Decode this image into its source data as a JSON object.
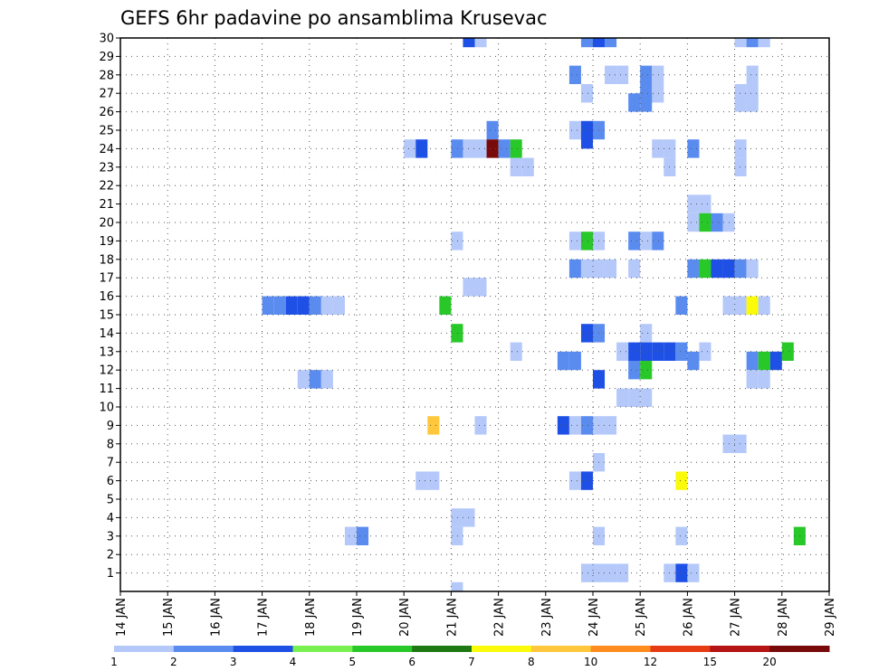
{
  "chart_data": {
    "type": "heatmap",
    "title": "GEFS 6hr padavine po ansamblima Krusevac",
    "xlabel": "",
    "ylabel": "",
    "x_ticks": [
      "14 JAN",
      "15 JAN",
      "16 JAN",
      "17 JAN",
      "18 JAN",
      "19 JAN",
      "20 JAN",
      "21 JAN",
      "22 JAN",
      "23 JAN",
      "24 JAN",
      "25 JAN",
      "26 JAN",
      "27 JAN",
      "28 JAN",
      "29 JAN"
    ],
    "y_ticks": [
      "1",
      "2",
      "3",
      "4",
      "5",
      "6",
      "7",
      "8",
      "9",
      "10",
      "11",
      "12",
      "13",
      "14",
      "15",
      "16",
      "17",
      "18",
      "19",
      "20",
      "21",
      "22",
      "23",
      "24",
      "25",
      "26",
      "27",
      "28",
      "29",
      "30"
    ],
    "xlim": [
      0,
      60
    ],
    "ylim": [
      0,
      30
    ],
    "time_step": "6hr",
    "grid": true,
    "colorbar": {
      "placement": "bottom",
      "labels": [
        "1",
        "2",
        "3",
        "4",
        "5",
        "6",
        "7",
        "8",
        "10",
        "12",
        "15",
        "20"
      ],
      "colors": [
        "#b4c8fa",
        "#5a8cf0",
        "#1e50e6",
        "#78f050",
        "#28c828",
        "#1e7814",
        "#fafa0a",
        "#ffc83c",
        "#ff8c1e",
        "#e63c14",
        "#b41414",
        "#780a0a"
      ]
    },
    "cells": [
      {
        "t": 29.5,
        "m": 30,
        "v": 3
      },
      {
        "t": 30.5,
        "m": 30,
        "v": 1
      },
      {
        "t": 39.5,
        "m": 30,
        "v": 2
      },
      {
        "t": 40.5,
        "m": 30,
        "v": 3
      },
      {
        "t": 41.5,
        "m": 30,
        "v": 2
      },
      {
        "t": 52.5,
        "m": 30,
        "v": 1
      },
      {
        "t": 53.5,
        "m": 30,
        "v": 2
      },
      {
        "t": 54.5,
        "m": 30,
        "v": 1
      },
      {
        "t": 38.5,
        "m": 28,
        "v": 2
      },
      {
        "t": 41.5,
        "m": 28,
        "v": 1
      },
      {
        "t": 42.5,
        "m": 28,
        "v": 1
      },
      {
        "t": 44.5,
        "m": 28,
        "v": 2
      },
      {
        "t": 45.5,
        "m": 28,
        "v": 1
      },
      {
        "t": 53.5,
        "m": 28,
        "v": 1
      },
      {
        "t": 39.5,
        "m": 27,
        "v": 1
      },
      {
        "t": 44.5,
        "m": 27,
        "v": 2
      },
      {
        "t": 45.5,
        "m": 27,
        "v": 1
      },
      {
        "t": 52.5,
        "m": 27,
        "v": 1
      },
      {
        "t": 53.5,
        "m": 27,
        "v": 1
      },
      {
        "t": 43.5,
        "m": 26.5,
        "v": 2
      },
      {
        "t": 44.5,
        "m": 26.5,
        "v": 2
      },
      {
        "t": 52.5,
        "m": 26.5,
        "v": 1
      },
      {
        "t": 53.5,
        "m": 26.5,
        "v": 1
      },
      {
        "t": 31.5,
        "m": 25,
        "v": 2
      },
      {
        "t": 38.5,
        "m": 25,
        "v": 1
      },
      {
        "t": 39.5,
        "m": 25,
        "v": 3
      },
      {
        "t": 40.5,
        "m": 25,
        "v": 2
      },
      {
        "t": 39.5,
        "m": 24.5,
        "v": 3
      },
      {
        "t": 24.5,
        "m": 24,
        "v": 1
      },
      {
        "t": 25.5,
        "m": 24,
        "v": 3
      },
      {
        "t": 28.5,
        "m": 24,
        "v": 2
      },
      {
        "t": 29.5,
        "m": 24,
        "v": 1
      },
      {
        "t": 30.5,
        "m": 24,
        "v": 1
      },
      {
        "t": 31.5,
        "m": 24,
        "v": 20
      },
      {
        "t": 32.5,
        "m": 24,
        "v": 2
      },
      {
        "t": 33.5,
        "m": 24,
        "v": 5
      },
      {
        "t": 45.5,
        "m": 24,
        "v": 1
      },
      {
        "t": 46.5,
        "m": 24,
        "v": 1
      },
      {
        "t": 48.5,
        "m": 24,
        "v": 2
      },
      {
        "t": 52.5,
        "m": 24,
        "v": 1
      },
      {
        "t": 33.5,
        "m": 23,
        "v": 1
      },
      {
        "t": 34.5,
        "m": 23,
        "v": 1
      },
      {
        "t": 46.5,
        "m": 23,
        "v": 1
      },
      {
        "t": 52.5,
        "m": 23,
        "v": 1
      },
      {
        "t": 48.5,
        "m": 21,
        "v": 1
      },
      {
        "t": 49.5,
        "m": 21,
        "v": 1
      },
      {
        "t": 48.5,
        "m": 20,
        "v": 1
      },
      {
        "t": 49.5,
        "m": 20,
        "v": 5
      },
      {
        "t": 50.5,
        "m": 20,
        "v": 2
      },
      {
        "t": 51.5,
        "m": 20,
        "v": 1
      },
      {
        "t": 28.5,
        "m": 19,
        "v": 1
      },
      {
        "t": 38.5,
        "m": 19,
        "v": 1
      },
      {
        "t": 39.5,
        "m": 19,
        "v": 5
      },
      {
        "t": 40.5,
        "m": 19,
        "v": 1
      },
      {
        "t": 43.5,
        "m": 19,
        "v": 2
      },
      {
        "t": 44.5,
        "m": 19,
        "v": 1
      },
      {
        "t": 45.5,
        "m": 19,
        "v": 2
      },
      {
        "t": 38.5,
        "m": 17.5,
        "v": 2
      },
      {
        "t": 39.5,
        "m": 17.5,
        "v": 1
      },
      {
        "t": 40.5,
        "m": 17.5,
        "v": 1
      },
      {
        "t": 41.5,
        "m": 17.5,
        "v": 1
      },
      {
        "t": 43.5,
        "m": 17.5,
        "v": 1
      },
      {
        "t": 48.5,
        "m": 17.5,
        "v": 2
      },
      {
        "t": 49.5,
        "m": 17.5,
        "v": 5
      },
      {
        "t": 50.5,
        "m": 17.5,
        "v": 3
      },
      {
        "t": 51.5,
        "m": 17.5,
        "v": 3
      },
      {
        "t": 52.5,
        "m": 17.5,
        "v": 2
      },
      {
        "t": 53.5,
        "m": 17.5,
        "v": 1
      },
      {
        "t": 29.5,
        "m": 16.5,
        "v": 1
      },
      {
        "t": 30.5,
        "m": 16.5,
        "v": 1
      },
      {
        "t": 12.5,
        "m": 15.5,
        "v": 2
      },
      {
        "t": 13.5,
        "m": 15.5,
        "v": 2
      },
      {
        "t": 14.5,
        "m": 15.5,
        "v": 3
      },
      {
        "t": 15.5,
        "m": 15.5,
        "v": 3
      },
      {
        "t": 16.5,
        "m": 15.5,
        "v": 2
      },
      {
        "t": 17.5,
        "m": 15.5,
        "v": 1
      },
      {
        "t": 18.5,
        "m": 15.5,
        "v": 1
      },
      {
        "t": 27.5,
        "m": 15.5,
        "v": 5
      },
      {
        "t": 47.5,
        "m": 15.5,
        "v": 2
      },
      {
        "t": 51.5,
        "m": 15.5,
        "v": 1
      },
      {
        "t": 52.5,
        "m": 15.5,
        "v": 1
      },
      {
        "t": 53.5,
        "m": 15.5,
        "v": 7
      },
      {
        "t": 54.5,
        "m": 15.5,
        "v": 1
      },
      {
        "t": 28.5,
        "m": 14,
        "v": 5
      },
      {
        "t": 39.5,
        "m": 14,
        "v": 3
      },
      {
        "t": 40.5,
        "m": 14,
        "v": 2
      },
      {
        "t": 44.5,
        "m": 14,
        "v": 1
      },
      {
        "t": 33.5,
        "m": 13,
        "v": 1
      },
      {
        "t": 42.5,
        "m": 13,
        "v": 1
      },
      {
        "t": 43.5,
        "m": 13,
        "v": 3
      },
      {
        "t": 44.5,
        "m": 13,
        "v": 3
      },
      {
        "t": 45.5,
        "m": 13,
        "v": 3
      },
      {
        "t": 46.5,
        "m": 13,
        "v": 3
      },
      {
        "t": 47.5,
        "m": 13,
        "v": 2
      },
      {
        "t": 49.5,
        "m": 13,
        "v": 1
      },
      {
        "t": 56.5,
        "m": 13,
        "v": 5
      },
      {
        "t": 37.5,
        "m": 12.5,
        "v": 2
      },
      {
        "t": 38.5,
        "m": 12.5,
        "v": 2
      },
      {
        "t": 43.5,
        "m": 12,
        "v": 2
      },
      {
        "t": 44.5,
        "m": 12,
        "v": 5
      },
      {
        "t": 48.5,
        "m": 12.5,
        "v": 2
      },
      {
        "t": 53.5,
        "m": 12.5,
        "v": 2
      },
      {
        "t": 54.5,
        "m": 12.5,
        "v": 5
      },
      {
        "t": 55.5,
        "m": 12.5,
        "v": 3
      },
      {
        "t": 15.5,
        "m": 11.5,
        "v": 1
      },
      {
        "t": 16.5,
        "m": 11.5,
        "v": 2
      },
      {
        "t": 17.5,
        "m": 11.5,
        "v": 1
      },
      {
        "t": 40.5,
        "m": 11.5,
        "v": 3
      },
      {
        "t": 53.5,
        "m": 11.5,
        "v": 1
      },
      {
        "t": 54.5,
        "m": 11.5,
        "v": 1
      },
      {
        "t": 42.5,
        "m": 10.5,
        "v": 1
      },
      {
        "t": 43.5,
        "m": 10.5,
        "v": 1
      },
      {
        "t": 44.5,
        "m": 10.5,
        "v": 1
      },
      {
        "t": 26.5,
        "m": 9,
        "v": 8
      },
      {
        "t": 30.5,
        "m": 9,
        "v": 1
      },
      {
        "t": 37.5,
        "m": 9,
        "v": 3
      },
      {
        "t": 38.5,
        "m": 9,
        "v": 1
      },
      {
        "t": 39.5,
        "m": 9,
        "v": 2
      },
      {
        "t": 40.5,
        "m": 9,
        "v": 1
      },
      {
        "t": 41.5,
        "m": 9,
        "v": 1
      },
      {
        "t": 51.5,
        "m": 8,
        "v": 1
      },
      {
        "t": 52.5,
        "m": 8,
        "v": 1
      },
      {
        "t": 40.5,
        "m": 7,
        "v": 1
      },
      {
        "t": 25.5,
        "m": 6,
        "v": 1
      },
      {
        "t": 26.5,
        "m": 6,
        "v": 1
      },
      {
        "t": 38.5,
        "m": 6,
        "v": 1
      },
      {
        "t": 39.5,
        "m": 6,
        "v": 3
      },
      {
        "t": 47.5,
        "m": 6,
        "v": 7
      },
      {
        "t": 28.5,
        "m": 4,
        "v": 1
      },
      {
        "t": 29.5,
        "m": 4,
        "v": 1
      },
      {
        "t": 19.5,
        "m": 3,
        "v": 1
      },
      {
        "t": 20.5,
        "m": 3,
        "v": 2
      },
      {
        "t": 28.5,
        "m": 3,
        "v": 1
      },
      {
        "t": 40.5,
        "m": 3,
        "v": 1
      },
      {
        "t": 47.5,
        "m": 3,
        "v": 1
      },
      {
        "t": 57.5,
        "m": 3,
        "v": 5
      },
      {
        "t": 39.5,
        "m": 1,
        "v": 1
      },
      {
        "t": 40.5,
        "m": 1,
        "v": 1
      },
      {
        "t": 41.5,
        "m": 1,
        "v": 1
      },
      {
        "t": 42.5,
        "m": 1,
        "v": 1
      },
      {
        "t": 46.5,
        "m": 1,
        "v": 1
      },
      {
        "t": 47.5,
        "m": 1,
        "v": 3
      },
      {
        "t": 48.5,
        "m": 1,
        "v": 1
      },
      {
        "t": 28.5,
        "m": 0,
        "v": 1
      }
    ]
  }
}
